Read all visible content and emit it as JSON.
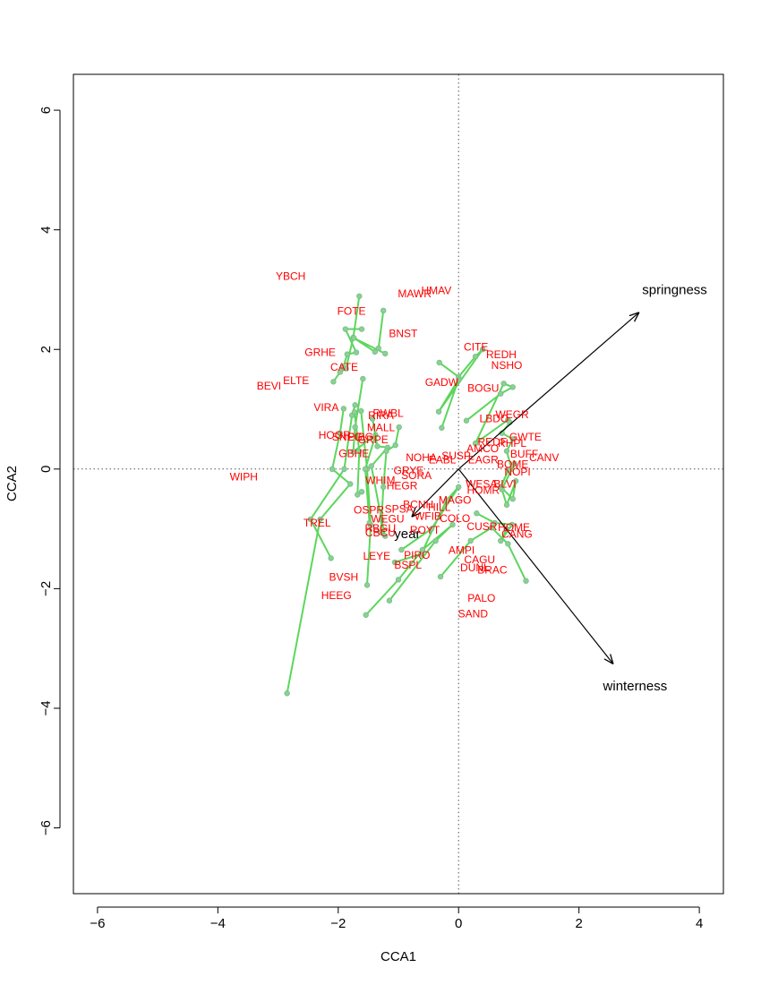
{
  "chart_data": {
    "type": "scatter",
    "xlabel": "CCA1",
    "ylabel": "CCA2",
    "xlim": [
      -6.4,
      4.4
    ],
    "ylim": [
      -7.1,
      6.6
    ],
    "xticks": [
      -6,
      -4,
      -2,
      0,
      2,
      4
    ],
    "yticks": [
      -6,
      -4,
      -2,
      0,
      2,
      4,
      6
    ],
    "zero_lines": true,
    "colors": {
      "species": "#ff0000",
      "trajectory": "#5cd65c",
      "point": "#8fcf8f",
      "arrow": "#000000"
    },
    "arrows": [
      {
        "label": "springness",
        "x": 3.0,
        "y": 2.62,
        "label_x": 3.05,
        "label_y": 2.98
      },
      {
        "label": "winterness",
        "x": 2.57,
        "y": -3.26,
        "label_x": 2.4,
        "label_y": -3.64
      },
      {
        "label": "year",
        "x": -0.78,
        "y": -0.8,
        "label_x": -1.07,
        "label_y": -1.1
      }
    ],
    "species": [
      {
        "label": "YBCH",
        "x": -2.79,
        "y": 3.21
      },
      {
        "label": "MAWR",
        "x": -0.73,
        "y": 2.92
      },
      {
        "label": "HMAV",
        "x": -0.37,
        "y": 2.97
      },
      {
        "label": "FOTE",
        "x": -1.78,
        "y": 2.63
      },
      {
        "label": "BNST",
        "x": -0.92,
        "y": 2.25
      },
      {
        "label": "CITE",
        "x": 0.29,
        "y": 2.03
      },
      {
        "label": "REDH",
        "x": 0.71,
        "y": 1.9
      },
      {
        "label": "GRHE",
        "x": -2.3,
        "y": 1.94
      },
      {
        "label": "NSHO",
        "x": 0.8,
        "y": 1.72
      },
      {
        "label": "CATE",
        "x": -1.9,
        "y": 1.69
      },
      {
        "label": "ELTE",
        "x": -2.7,
        "y": 1.47
      },
      {
        "label": "BEVI",
        "x": -3.15,
        "y": 1.38
      },
      {
        "label": "GADW",
        "x": -0.28,
        "y": 1.44
      },
      {
        "label": "BOGU",
        "x": 0.41,
        "y": 1.34
      },
      {
        "label": "VIRA",
        "x": -2.2,
        "y": 1.02
      },
      {
        "label": "RIRA",
        "x": -1.29,
        "y": 0.88
      },
      {
        "label": "RWBL",
        "x": -1.17,
        "y": 0.92
      },
      {
        "label": "LBDO",
        "x": 0.59,
        "y": 0.83
      },
      {
        "label": "WEGR",
        "x": 0.89,
        "y": 0.9
      },
      {
        "label": "MALL",
        "x": -1.29,
        "y": 0.68
      },
      {
        "label": "HOGR",
        "x": -2.06,
        "y": 0.55
      },
      {
        "label": "SNEG",
        "x": -1.85,
        "y": 0.52
      },
      {
        "label": "PIBG",
        "x": -1.63,
        "y": 0.52
      },
      {
        "label": "GRPE",
        "x": -1.42,
        "y": 0.48
      },
      {
        "label": "GWTE",
        "x": 1.11,
        "y": 0.52
      },
      {
        "label": "REDF",
        "x": 0.56,
        "y": 0.44
      },
      {
        "label": "RHPL",
        "x": 0.89,
        "y": 0.42
      },
      {
        "label": "AMCO",
        "x": 0.4,
        "y": 0.33
      },
      {
        "label": "BUFF",
        "x": 1.09,
        "y": 0.24
      },
      {
        "label": "CANV",
        "x": 1.42,
        "y": 0.18
      },
      {
        "label": "GBHE",
        "x": -1.74,
        "y": 0.25
      },
      {
        "label": "NOHA",
        "x": -0.62,
        "y": 0.18
      },
      {
        "label": "SUSP",
        "x": -0.04,
        "y": 0.21
      },
      {
        "label": "EABL",
        "x": -0.27,
        "y": 0.14
      },
      {
        "label": "EAGR",
        "x": 0.41,
        "y": 0.14
      },
      {
        "label": "BOME",
        "x": 0.9,
        "y": 0.07
      },
      {
        "label": "NOPI",
        "x": 0.98,
        "y": -0.06
      },
      {
        "label": "GRYE",
        "x": -0.83,
        "y": -0.04
      },
      {
        "label": "SORA",
        "x": -0.7,
        "y": -0.12
      },
      {
        "label": "WHIM",
        "x": -1.3,
        "y": -0.2
      },
      {
        "label": "HEGR",
        "x": -0.94,
        "y": -0.29
      },
      {
        "label": "WIPH",
        "x": -3.57,
        "y": -0.14
      },
      {
        "label": "WESA",
        "x": 0.38,
        "y": -0.26
      },
      {
        "label": "BLVI",
        "x": 0.77,
        "y": -0.26
      },
      {
        "label": "HOMR",
        "x": 0.41,
        "y": -0.37
      },
      {
        "label": "MAGO",
        "x": -0.06,
        "y": -0.53
      },
      {
        "label": "BCNH",
        "x": -0.67,
        "y": -0.61
      },
      {
        "label": "HILL",
        "x": -0.32,
        "y": -0.65
      },
      {
        "label": "OSPR",
        "x": -1.49,
        "y": -0.7
      },
      {
        "label": "SPSA",
        "x": -0.99,
        "y": -0.68
      },
      {
        "label": "WEGU",
        "x": -1.18,
        "y": -0.85
      },
      {
        "label": "WFIB",
        "x": -0.51,
        "y": -0.8
      },
      {
        "label": "COLO",
        "x": -0.06,
        "y": -0.84
      },
      {
        "label": "TREL",
        "x": -2.35,
        "y": -0.91
      },
      {
        "label": "RBGU",
        "x": -1.3,
        "y": -1.0
      },
      {
        "label": "CBCU",
        "x": -1.3,
        "y": -1.08
      },
      {
        "label": "ROYT",
        "x": -0.56,
        "y": -1.03
      },
      {
        "label": "CUSR",
        "x": 0.39,
        "y": -0.97
      },
      {
        "label": "HOME",
        "x": 0.92,
        "y": -0.99
      },
      {
        "label": "CANG",
        "x": 0.97,
        "y": -1.1
      },
      {
        "label": "AMPI",
        "x": 0.05,
        "y": -1.37
      },
      {
        "label": "LEYE",
        "x": -1.36,
        "y": -1.47
      },
      {
        "label": "PIRO",
        "x": -0.69,
        "y": -1.45
      },
      {
        "label": "BSPL",
        "x": -0.84,
        "y": -1.62
      },
      {
        "label": "CAGU",
        "x": 0.35,
        "y": -1.53
      },
      {
        "label": "DUNL",
        "x": 0.27,
        "y": -1.66
      },
      {
        "label": "BRAC",
        "x": 0.56,
        "y": -1.7
      },
      {
        "label": "BVSH",
        "x": -1.91,
        "y": -1.82
      },
      {
        "label": "HEEG",
        "x": -2.03,
        "y": -2.13
      },
      {
        "label": "PALO",
        "x": 0.38,
        "y": -2.17
      },
      {
        "label": "SAND",
        "x": 0.24,
        "y": -2.43
      }
    ],
    "trajectories": [
      [
        [
          -1.65,
          2.89
        ],
        [
          -1.75,
          2.2
        ],
        [
          -1.87,
          1.68
        ],
        [
          -1.97,
          1.62
        ],
        [
          -2.08,
          1.46
        ]
      ],
      [
        [
          -1.61,
          2.34
        ],
        [
          -1.88,
          2.34
        ],
        [
          -1.7,
          1.95
        ],
        [
          -1.85,
          1.92
        ],
        [
          -1.92,
          1.7
        ]
      ],
      [
        [
          -1.25,
          2.65
        ],
        [
          -1.33,
          2.02
        ],
        [
          -1.39,
          1.96
        ],
        [
          -1.74,
          2.19
        ],
        [
          -1.22,
          1.93
        ]
      ],
      [
        [
          -0.32,
          1.78
        ],
        [
          0.0,
          1.54
        ],
        [
          0.28,
          1.88
        ],
        [
          0.4,
          2.0
        ],
        [
          -0.33,
          0.96
        ],
        [
          0.0,
          1.5
        ],
        [
          -0.28,
          0.69
        ]
      ],
      [
        [
          0.13,
          0.81
        ],
        [
          0.7,
          1.26
        ],
        [
          0.9,
          1.37
        ],
        [
          0.75,
          1.43
        ],
        [
          0.28,
          0.43
        ],
        [
          0.82,
          0.82
        ]
      ],
      [
        [
          0.85,
          0.78
        ],
        [
          0.72,
          0.6
        ],
        [
          0.9,
          0.5
        ],
        [
          0.8,
          0.3
        ],
        [
          0.88,
          0.0
        ]
      ],
      [
        [
          -1.72,
          1.07
        ],
        [
          -1.77,
          0.9
        ],
        [
          -1.9,
          0.0
        ],
        [
          -2.46,
          -0.84
        ],
        [
          -2.12,
          -1.49
        ]
      ],
      [
        [
          -1.91,
          1.01
        ],
        [
          -1.97,
          0.6
        ],
        [
          -2.1,
          0.0
        ],
        [
          -1.8,
          -0.25
        ],
        [
          -2.3,
          -0.84
        ],
        [
          -2.85,
          -3.75
        ]
      ],
      [
        [
          -1.73,
          0.95
        ],
        [
          -1.65,
          0.3
        ],
        [
          -1.68,
          -0.43
        ],
        [
          -1.61,
          -0.38
        ]
      ],
      [
        [
          -1.62,
          0.97
        ],
        [
          -1.52,
          0.0
        ],
        [
          -1.46,
          -0.94
        ],
        [
          -1.52,
          -1.94
        ]
      ],
      [
        [
          -1.59,
          1.51
        ],
        [
          -1.72,
          0.7
        ],
        [
          -1.75,
          0.29
        ],
        [
          -1.38,
          0.57
        ],
        [
          -1.55,
          0.0
        ],
        [
          -1.48,
          -0.9
        ]
      ],
      [
        [
          -1.43,
          0.84
        ],
        [
          -1.35,
          0.38
        ],
        [
          -1.18,
          0.36
        ],
        [
          -1.45,
          0.05
        ],
        [
          -1.28,
          -0.85
        ],
        [
          -1.22,
          -1.12
        ]
      ],
      [
        [
          -0.99,
          0.7
        ],
        [
          -1.05,
          0.4
        ],
        [
          -1.2,
          0.3
        ],
        [
          -1.25,
          -0.3
        ],
        [
          -1.29,
          -1.06
        ]
      ],
      [
        [
          -1.06,
          -1.56
        ],
        [
          -0.62,
          -1.42
        ],
        [
          -0.2,
          -0.52
        ],
        [
          0.0,
          -0.3
        ],
        [
          -0.45,
          -1.0
        ],
        [
          -0.95,
          -1.35
        ]
      ],
      [
        [
          -1.54,
          -2.44
        ],
        [
          -1.0,
          -1.85
        ],
        [
          -0.6,
          -1.35
        ],
        [
          -0.1,
          -0.93
        ],
        [
          -0.38,
          -1.2
        ],
        [
          -1.15,
          -2.2
        ]
      ],
      [
        [
          -0.3,
          -1.8
        ],
        [
          0.2,
          -1.2
        ],
        [
          0.55,
          -0.98
        ],
        [
          0.82,
          -1.25
        ],
        [
          1.12,
          -1.87
        ]
      ],
      [
        [
          0.3,
          -0.74
        ],
        [
          0.6,
          -0.9
        ],
        [
          0.89,
          -0.93
        ],
        [
          0.7,
          -1.2
        ],
        [
          0.8,
          -1.0
        ]
      ],
      [
        [
          0.83,
          -0.01
        ],
        [
          0.7,
          -0.3
        ],
        [
          0.9,
          -0.5
        ],
        [
          0.95,
          -0.2
        ],
        [
          0.8,
          -0.6
        ],
        [
          0.72,
          -0.34
        ],
        [
          0.93,
          0.09
        ]
      ]
    ]
  }
}
